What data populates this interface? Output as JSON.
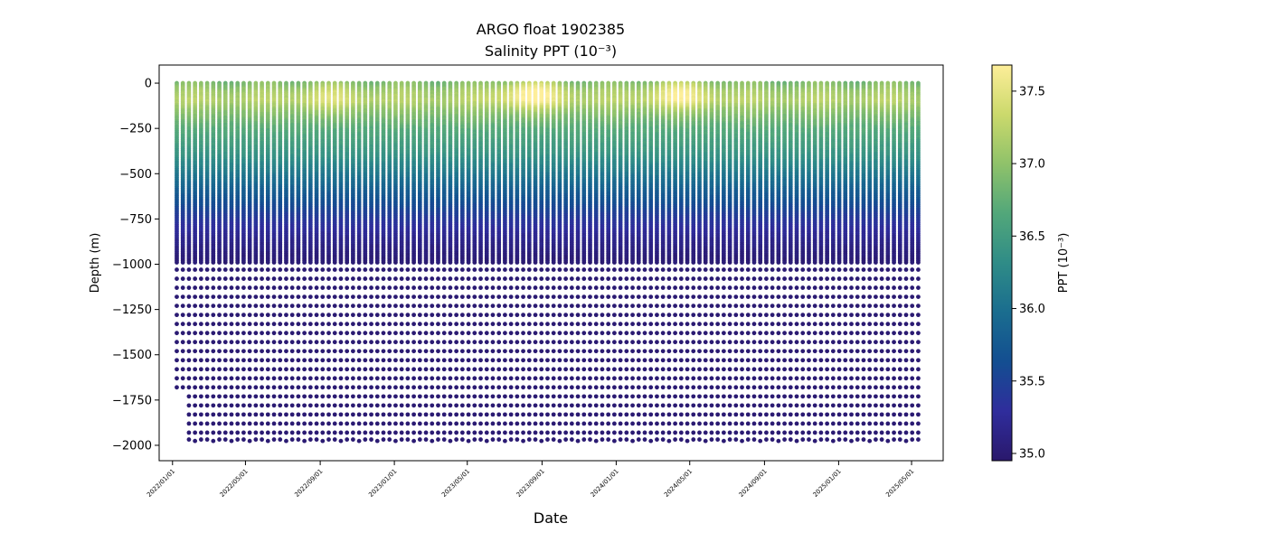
{
  "chart_data": {
    "type": "scatter",
    "title": "ARGO float 1902385",
    "subtitle": "Salinity PPT (10⁻³)",
    "xlabel": "Date",
    "ylabel": "Depth (m)",
    "x_axis": {
      "type": "date",
      "range": [
        "2021-12-10",
        "2025-06-22"
      ],
      "tick_values": [
        "2022-01-01",
        "2022-05-01",
        "2022-09-01",
        "2023-01-01",
        "2023-05-01",
        "2023-09-01",
        "2024-01-01",
        "2024-05-01",
        "2024-09-01",
        "2025-01-01",
        "2025-05-01"
      ],
      "tick_labels": [
        "2022/01/01",
        "2022/05/01",
        "2022/09/01",
        "2023/01/01",
        "2023/05/01",
        "2023/09/01",
        "2024/01/01",
        "2024/05/01",
        "2024/09/01",
        "2025/01/01",
        "2025/05/01"
      ]
    },
    "y_axis": {
      "range": [
        -2085,
        100
      ],
      "ticks": [
        0,
        -250,
        -500,
        -750,
        -1000,
        -1250,
        -1500,
        -1750,
        -2000
      ],
      "tick_labels": [
        "0",
        "−250",
        "−500",
        "−750",
        "−1000",
        "−1250",
        "−1500",
        "−1750",
        "−2000"
      ]
    },
    "series": {
      "profile_dates_range": [
        "2022-01-08",
        "2025-05-13"
      ],
      "profile_interval_days": 10,
      "profile_count": 123,
      "depth_range_m": [
        -1980,
        0
      ],
      "salinity_range_ppt": [
        35.0,
        37.7
      ]
    },
    "salinity_profile": {
      "depth_m": [
        0,
        -50,
        -100,
        -150,
        -250,
        -400,
        -500,
        -600,
        -750,
        -850,
        -950,
        -1000,
        -2000
      ],
      "salinity_ppt": [
        36.9,
        37.1,
        37.2,
        37.0,
        36.7,
        36.4,
        36.1,
        35.8,
        35.4,
        35.2,
        35.05,
        35.0,
        35.0
      ]
    },
    "high_salinity_events": [
      {
        "date": "2023-08-15",
        "depth_m": -60,
        "salinity_ppt": 37.7
      },
      {
        "date": "2024-04-15",
        "depth_m": -60,
        "salinity_ppt": 37.6
      },
      {
        "date": "2022-09-15",
        "depth_m": -80,
        "salinity_ppt": 37.4
      }
    ],
    "colorbar": {
      "label": "PPT (10⁻³)",
      "range": [
        34.95,
        37.68
      ],
      "ticks": [
        35.0,
        35.5,
        36.0,
        36.5,
        37.0,
        37.5
      ],
      "tick_labels": [
        "35.0",
        "35.5",
        "36.0",
        "36.5",
        "37.0",
        "37.5"
      ],
      "colormap": "haline",
      "stops": [
        "#2a186c",
        "#2f2d9c",
        "#134e91",
        "#1a6d8f",
        "#2f8c87",
        "#52a77a",
        "#8fc26a",
        "#cbd96c",
        "#fdee99"
      ]
    },
    "grid": false,
    "legend": "none"
  }
}
